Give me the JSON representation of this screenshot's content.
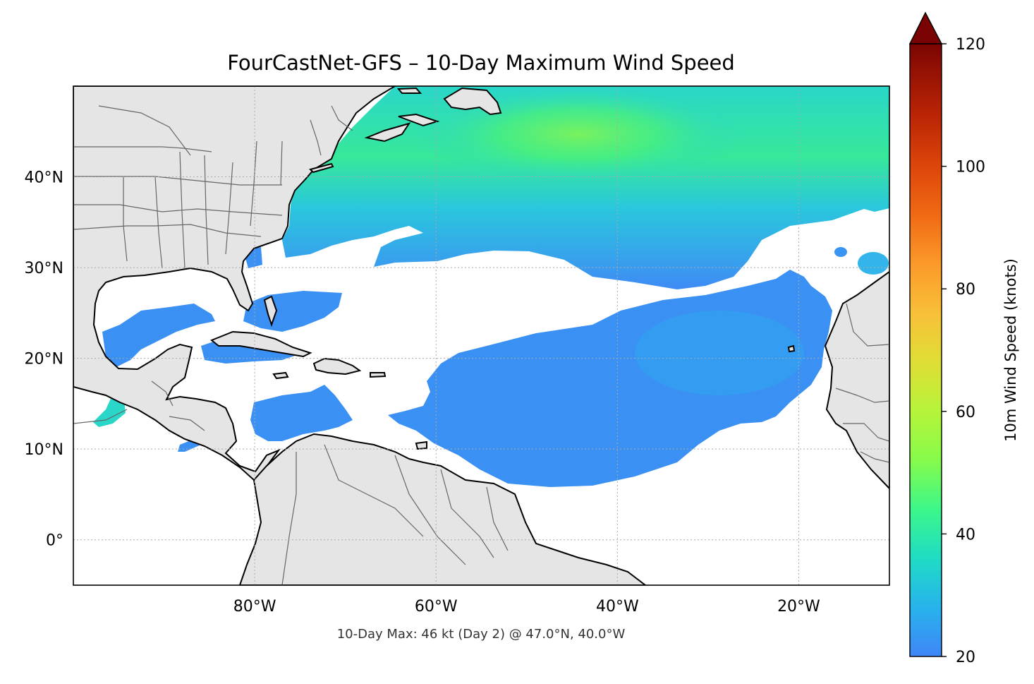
{
  "title": "FourCastNet-GFS – 10-Day Maximum Wind Speed",
  "footer": "10-Day Max: 46 kt (Day 2) @ 47.0°N, 40.0°W",
  "map": {
    "lon_range": [
      -100,
      -10
    ],
    "lat_range": [
      -5,
      50
    ],
    "lon_ticks": [
      {
        "value": -80,
        "label": "80°W"
      },
      {
        "value": -60,
        "label": "60°W"
      },
      {
        "value": -40,
        "label": "40°W"
      },
      {
        "value": -20,
        "label": "20°W"
      }
    ],
    "lat_ticks": [
      {
        "value": 40,
        "label": "40°N"
      },
      {
        "value": 30,
        "label": "30°N"
      },
      {
        "value": 20,
        "label": "20°N"
      },
      {
        "value": 10,
        "label": "10°N"
      },
      {
        "value": 0,
        "label": "0°"
      }
    ],
    "gridlines": "dotted",
    "land_color": "#e5e5e5",
    "ocean_color": "#ffffff"
  },
  "colorbar": {
    "label": "10m Wind Speed (knots)",
    "min": 20,
    "max": 120,
    "extend": "max",
    "colormap": "turbo",
    "ticks": [
      {
        "value": 120,
        "label": "120"
      },
      {
        "value": 100,
        "label": "100"
      },
      {
        "value": 80,
        "label": "80"
      },
      {
        "value": 60,
        "label": "60"
      },
      {
        "value": 40,
        "label": "40"
      },
      {
        "value": 20,
        "label": "20"
      }
    ]
  },
  "max_point": {
    "wind_kt": 46,
    "day": 2,
    "lat": 47.0,
    "lon": -40.0
  }
}
